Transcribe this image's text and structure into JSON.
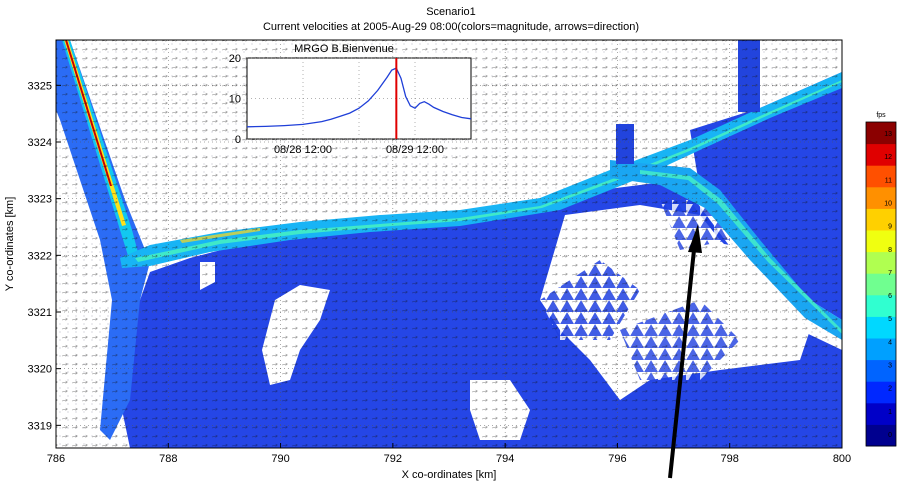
{
  "figure": {
    "title_line1": "Scenario1",
    "title_line2": "Current velocities at 2005-Aug-29 08:00(colors=magnitude, arrows=direction)"
  },
  "chart_data": [
    {
      "type": "heatmap",
      "description_role": "main_map",
      "xlabel": "X co-ordinates [km]",
      "ylabel": "Y co-ordinates [km]",
      "xlim": [
        786,
        800
      ],
      "ylim": [
        3318.6,
        3325.8
      ],
      "xticks": [
        786,
        788,
        790,
        792,
        794,
        796,
        798,
        800
      ],
      "yticks": [
        3319,
        3320,
        3321,
        3322,
        3323,
        3324,
        3325
      ],
      "grid": true,
      "colorbar": {
        "unit": "fps",
        "min": -0.5,
        "max": 13.5,
        "ticks": [
          0,
          1,
          2,
          3,
          4,
          5,
          6,
          7,
          8,
          9,
          10,
          11,
          12,
          13
        ],
        "colors": [
          "#00008f",
          "#0000c8",
          "#0028ff",
          "#0064ff",
          "#00a0ff",
          "#00d8ff",
          "#30ffd0",
          "#70ff90",
          "#b0ff50",
          "#f0ff10",
          "#ffd000",
          "#ff9000",
          "#ff5000",
          "#e00000",
          "#8b0000"
        ]
      },
      "annotation": "arrow"
    },
    {
      "type": "line",
      "description_role": "inset_timeseries",
      "title": "MRGO B.Bienvenue",
      "xlabel": "",
      "ylabel": "",
      "ylim": [
        0,
        20
      ],
      "yticks": [
        0,
        10,
        20
      ],
      "xtick_labels": [
        "08/28 12:00",
        "08/29 12:00"
      ],
      "xtick_hours": [
        12,
        36
      ],
      "xlim_hours": [
        0,
        48
      ],
      "series": [
        {
          "color": "#1f3fd8",
          "x_hours": [
            0,
            4,
            8,
            12,
            16,
            18,
            20,
            22,
            24,
            26,
            28,
            30,
            31,
            32,
            33,
            34,
            35,
            36,
            37,
            38,
            39,
            40,
            42,
            44,
            46,
            48
          ],
          "values": [
            3.0,
            3.1,
            3.3,
            3.6,
            4.3,
            4.9,
            5.6,
            6.4,
            7.6,
            9.4,
            12.0,
            15.2,
            17.0,
            17.5,
            15.0,
            10.5,
            8.2,
            7.6,
            8.8,
            9.2,
            8.6,
            7.8,
            6.8,
            6.0,
            5.3,
            5.0
          ]
        }
      ],
      "current_time_hours": 32,
      "current_time_color": "#e00000"
    }
  ]
}
